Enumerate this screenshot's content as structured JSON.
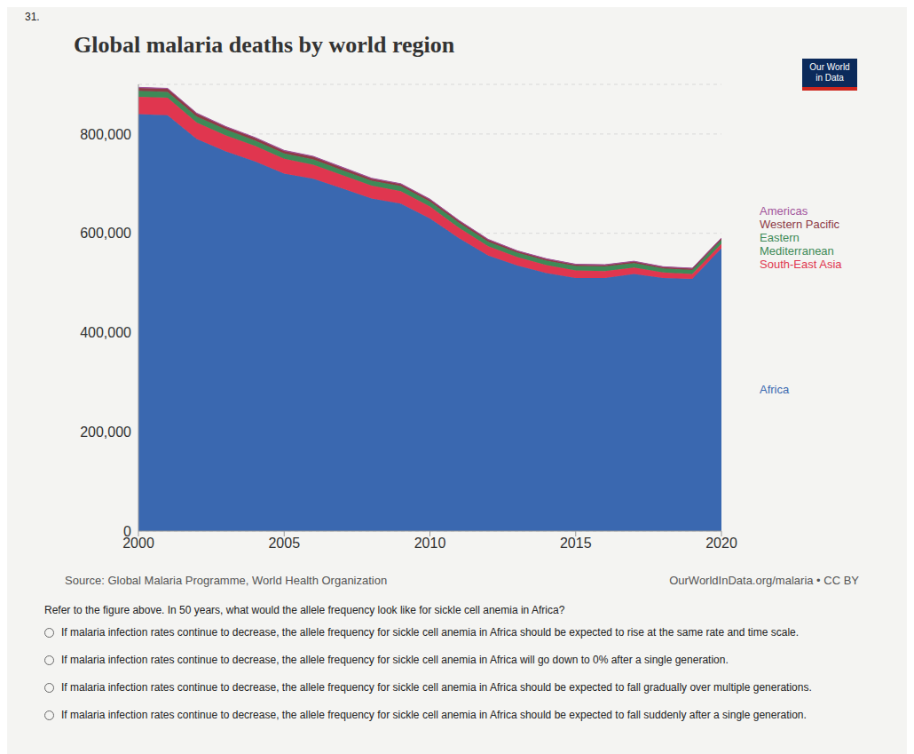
{
  "number": "31.",
  "chart_data": {
    "type": "area",
    "stacked": true,
    "title": "Global malaria deaths by world region",
    "x": [
      2000,
      2001,
      2002,
      2003,
      2004,
      2005,
      2006,
      2007,
      2008,
      2009,
      2010,
      2011,
      2012,
      2013,
      2014,
      2015,
      2016,
      2017,
      2018,
      2019,
      2020
    ],
    "xlim": [
      2000,
      2020
    ],
    "xticks": [
      2000,
      2005,
      2010,
      2015,
      2020
    ],
    "ylim": [
      0,
      900000
    ],
    "yticks": [
      0,
      {
        "value": 200000,
        "label": "200,000"
      },
      {
        "value": 400000,
        "label": "400,000"
      },
      {
        "value": 600000,
        "label": "600,000"
      },
      {
        "value": 800000,
        "label": "800,000"
      }
    ],
    "grid": true,
    "series": [
      {
        "name": "Africa",
        "color": "#3a68b0",
        "values": [
          840000,
          838000,
          790000,
          765000,
          745000,
          720000,
          710000,
          690000,
          670000,
          660000,
          630000,
          590000,
          555000,
          535000,
          520000,
          510000,
          510000,
          518000,
          510000,
          508000,
          570000
        ]
      },
      {
        "name": "South-East Asia",
        "color": "#e0364f",
        "values": [
          35000,
          35000,
          33000,
          32000,
          31000,
          30000,
          28000,
          27000,
          26000,
          25000,
          24000,
          21000,
          19000,
          17000,
          16000,
          15000,
          14000,
          13000,
          11000,
          10000,
          9000
        ]
      },
      {
        "name": "Eastern Mediterranean",
        "color": "#3e8a57",
        "values": [
          12000,
          12000,
          12000,
          12000,
          11000,
          11000,
          11000,
          10000,
          10000,
          10000,
          10000,
          10000,
          9000,
          9000,
          9000,
          9000,
          9000,
          9000,
          8000,
          8000,
          8000
        ]
      },
      {
        "name": "Western Pacific",
        "color": "#8e3b46",
        "values": [
          6000,
          6000,
          6000,
          5000,
          5000,
          5000,
          5000,
          5000,
          4000,
          4000,
          4000,
          4000,
          4000,
          3000,
          3000,
          3000,
          3000,
          3000,
          3000,
          3000,
          3000
        ]
      },
      {
        "name": "Americas",
        "color": "#a2559c",
        "values": [
          1000,
          1000,
          1000,
          1000,
          1000,
          1000,
          1000,
          1000,
          900,
          900,
          800,
          800,
          800,
          700,
          700,
          700,
          700,
          700,
          600,
          600,
          600
        ]
      }
    ]
  },
  "logo": [
    "Our World",
    "in Data"
  ],
  "source": "Source: Global Malaria Programme, World Health Organization",
  "credit": "OurWorldInData.org/malaria • CC BY",
  "question": "Refer to the figure above. In 50 years, what would the allele frequency look like for sickle cell anemia in Africa?",
  "options": [
    "If malaria infection rates continue to decrease, the allele frequency for sickle cell anemia in Africa should be expected to rise at the same rate and time scale.",
    "If malaria infection rates continue to decrease, the allele frequency for sickle cell anemia in Africa will go down to 0% after a single generation.",
    "If malaria infection rates continue to decrease, the allele frequency for sickle cell anemia in Africa should be expected to fall gradually over multiple generations.",
    "If malaria infection rates continue to decrease, the allele frequency for sickle cell anemia in Africa should be expected to fall suddenly after a single generation."
  ]
}
